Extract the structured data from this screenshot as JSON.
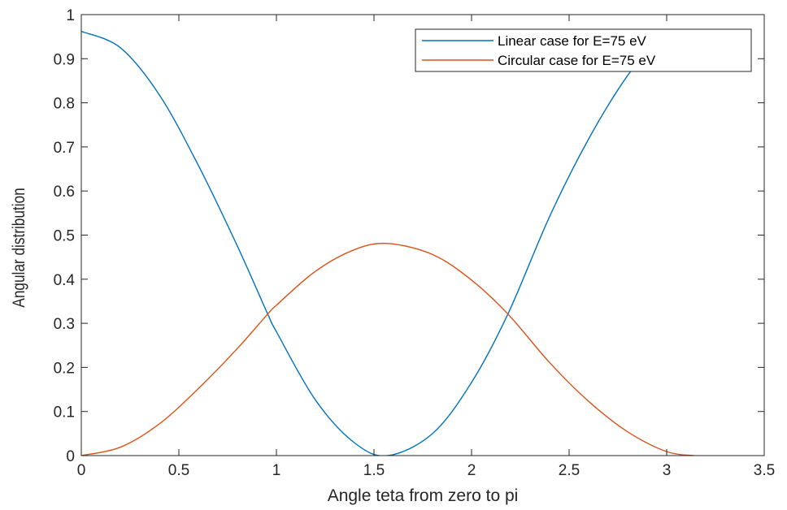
{
  "chart_data": {
    "type": "line",
    "title": "",
    "xlabel": "Angle teta from zero to pi",
    "ylabel": "Angular distribution",
    "xlim": [
      0,
      3.5
    ],
    "ylim": [
      0,
      1
    ],
    "xticks": [
      0,
      0.5,
      1,
      1.5,
      2,
      2.5,
      3,
      3.5
    ],
    "xtick_labels": [
      "0",
      "0.5",
      "1",
      "1.5",
      "2",
      "2.5",
      "3",
      "3.5"
    ],
    "yticks": [
      0,
      0.1,
      0.2,
      0.3,
      0.4,
      0.5,
      0.6,
      0.7,
      0.8,
      0.9,
      1
    ],
    "ytick_labels": [
      "0",
      "0.1",
      "0.2",
      "0.3",
      "0.4",
      "0.5",
      "0.6",
      "0.7",
      "0.8",
      "0.9",
      "1"
    ],
    "grid": false,
    "legend_position": "top-right",
    "series": [
      {
        "name": "Linear case for E=75 eV",
        "color": "#0072BD",
        "x": [
          0,
          0.2,
          0.4,
          0.6,
          0.8,
          0.9553,
          1.0,
          1.2,
          1.4,
          1.5708,
          1.8,
          2.0,
          2.1863,
          2.4,
          2.6,
          2.8,
          2.94
        ],
        "y": [
          0.962,
          0.925,
          0.818,
          0.658,
          0.475,
          0.321,
          0.281,
          0.126,
          0.029,
          0.0,
          0.05,
          0.166,
          0.321,
          0.542,
          0.718,
          0.862,
          0.93
        ]
      },
      {
        "name": "Circular case for E=75 eV",
        "color": "#D95319",
        "x": [
          0,
          0.2,
          0.4,
          0.6,
          0.8,
          0.9553,
          1.0,
          1.2,
          1.4,
          1.5708,
          1.8,
          2.0,
          2.1863,
          2.4,
          2.6,
          2.8,
          3.0,
          3.1416
        ],
        "y": [
          0.0,
          0.019,
          0.072,
          0.152,
          0.243,
          0.321,
          0.341,
          0.418,
          0.467,
          0.481,
          0.456,
          0.398,
          0.321,
          0.211,
          0.123,
          0.054,
          0.009,
          0.0
        ]
      }
    ]
  }
}
